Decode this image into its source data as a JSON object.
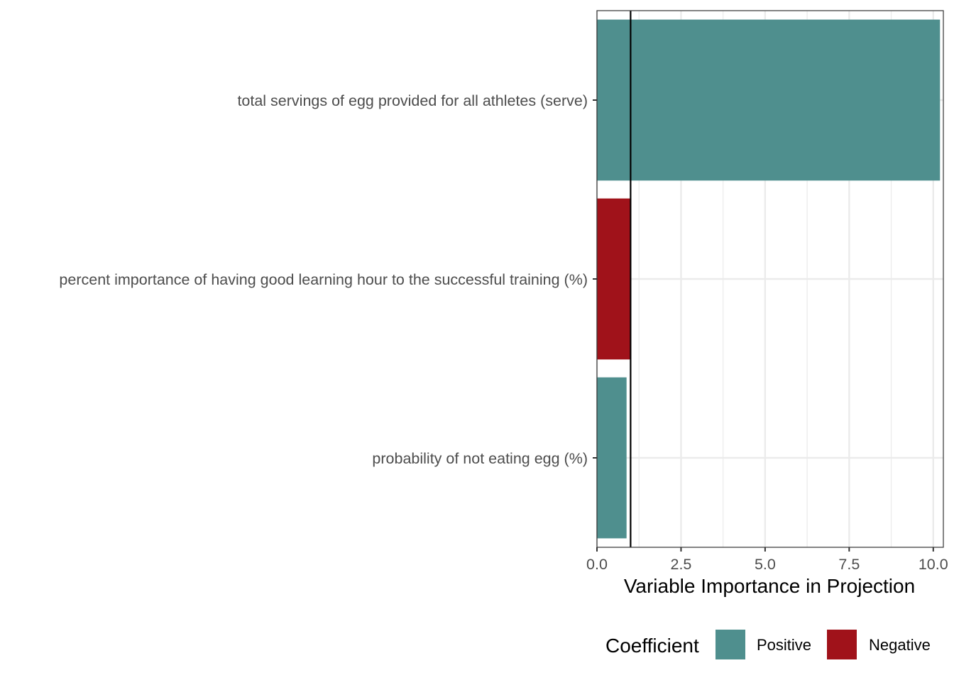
{
  "chart_data": {
    "type": "bar",
    "orientation": "horizontal",
    "categories": [
      "total servings of egg provided for all athletes (serve)",
      "percent importance of having good learning hour to the successful training (%)",
      "probability of not eating egg (%)"
    ],
    "values": [
      10.2,
      1.0,
      0.88
    ],
    "coefficient": [
      "Positive",
      "Negative",
      "Positive"
    ],
    "xlabel": "Variable Importance in Projection",
    "xlim": [
      0,
      10.3
    ],
    "xticks": [
      0,
      2.5,
      5,
      7.5,
      10
    ],
    "xtick_labels": [
      "0.0",
      "2.5",
      "5.0",
      "7.5",
      "10.0"
    ],
    "reference_line": 1.0,
    "grid": true,
    "legend": {
      "title": "Coefficient",
      "placement": "bottom",
      "entries": [
        {
          "label": "Positive",
          "color": "#4f8f8e"
        },
        {
          "label": "Negative",
          "color": "#a0121a"
        }
      ]
    },
    "colors": {
      "Positive": "#4f8f8e",
      "Negative": "#a0121a"
    }
  }
}
